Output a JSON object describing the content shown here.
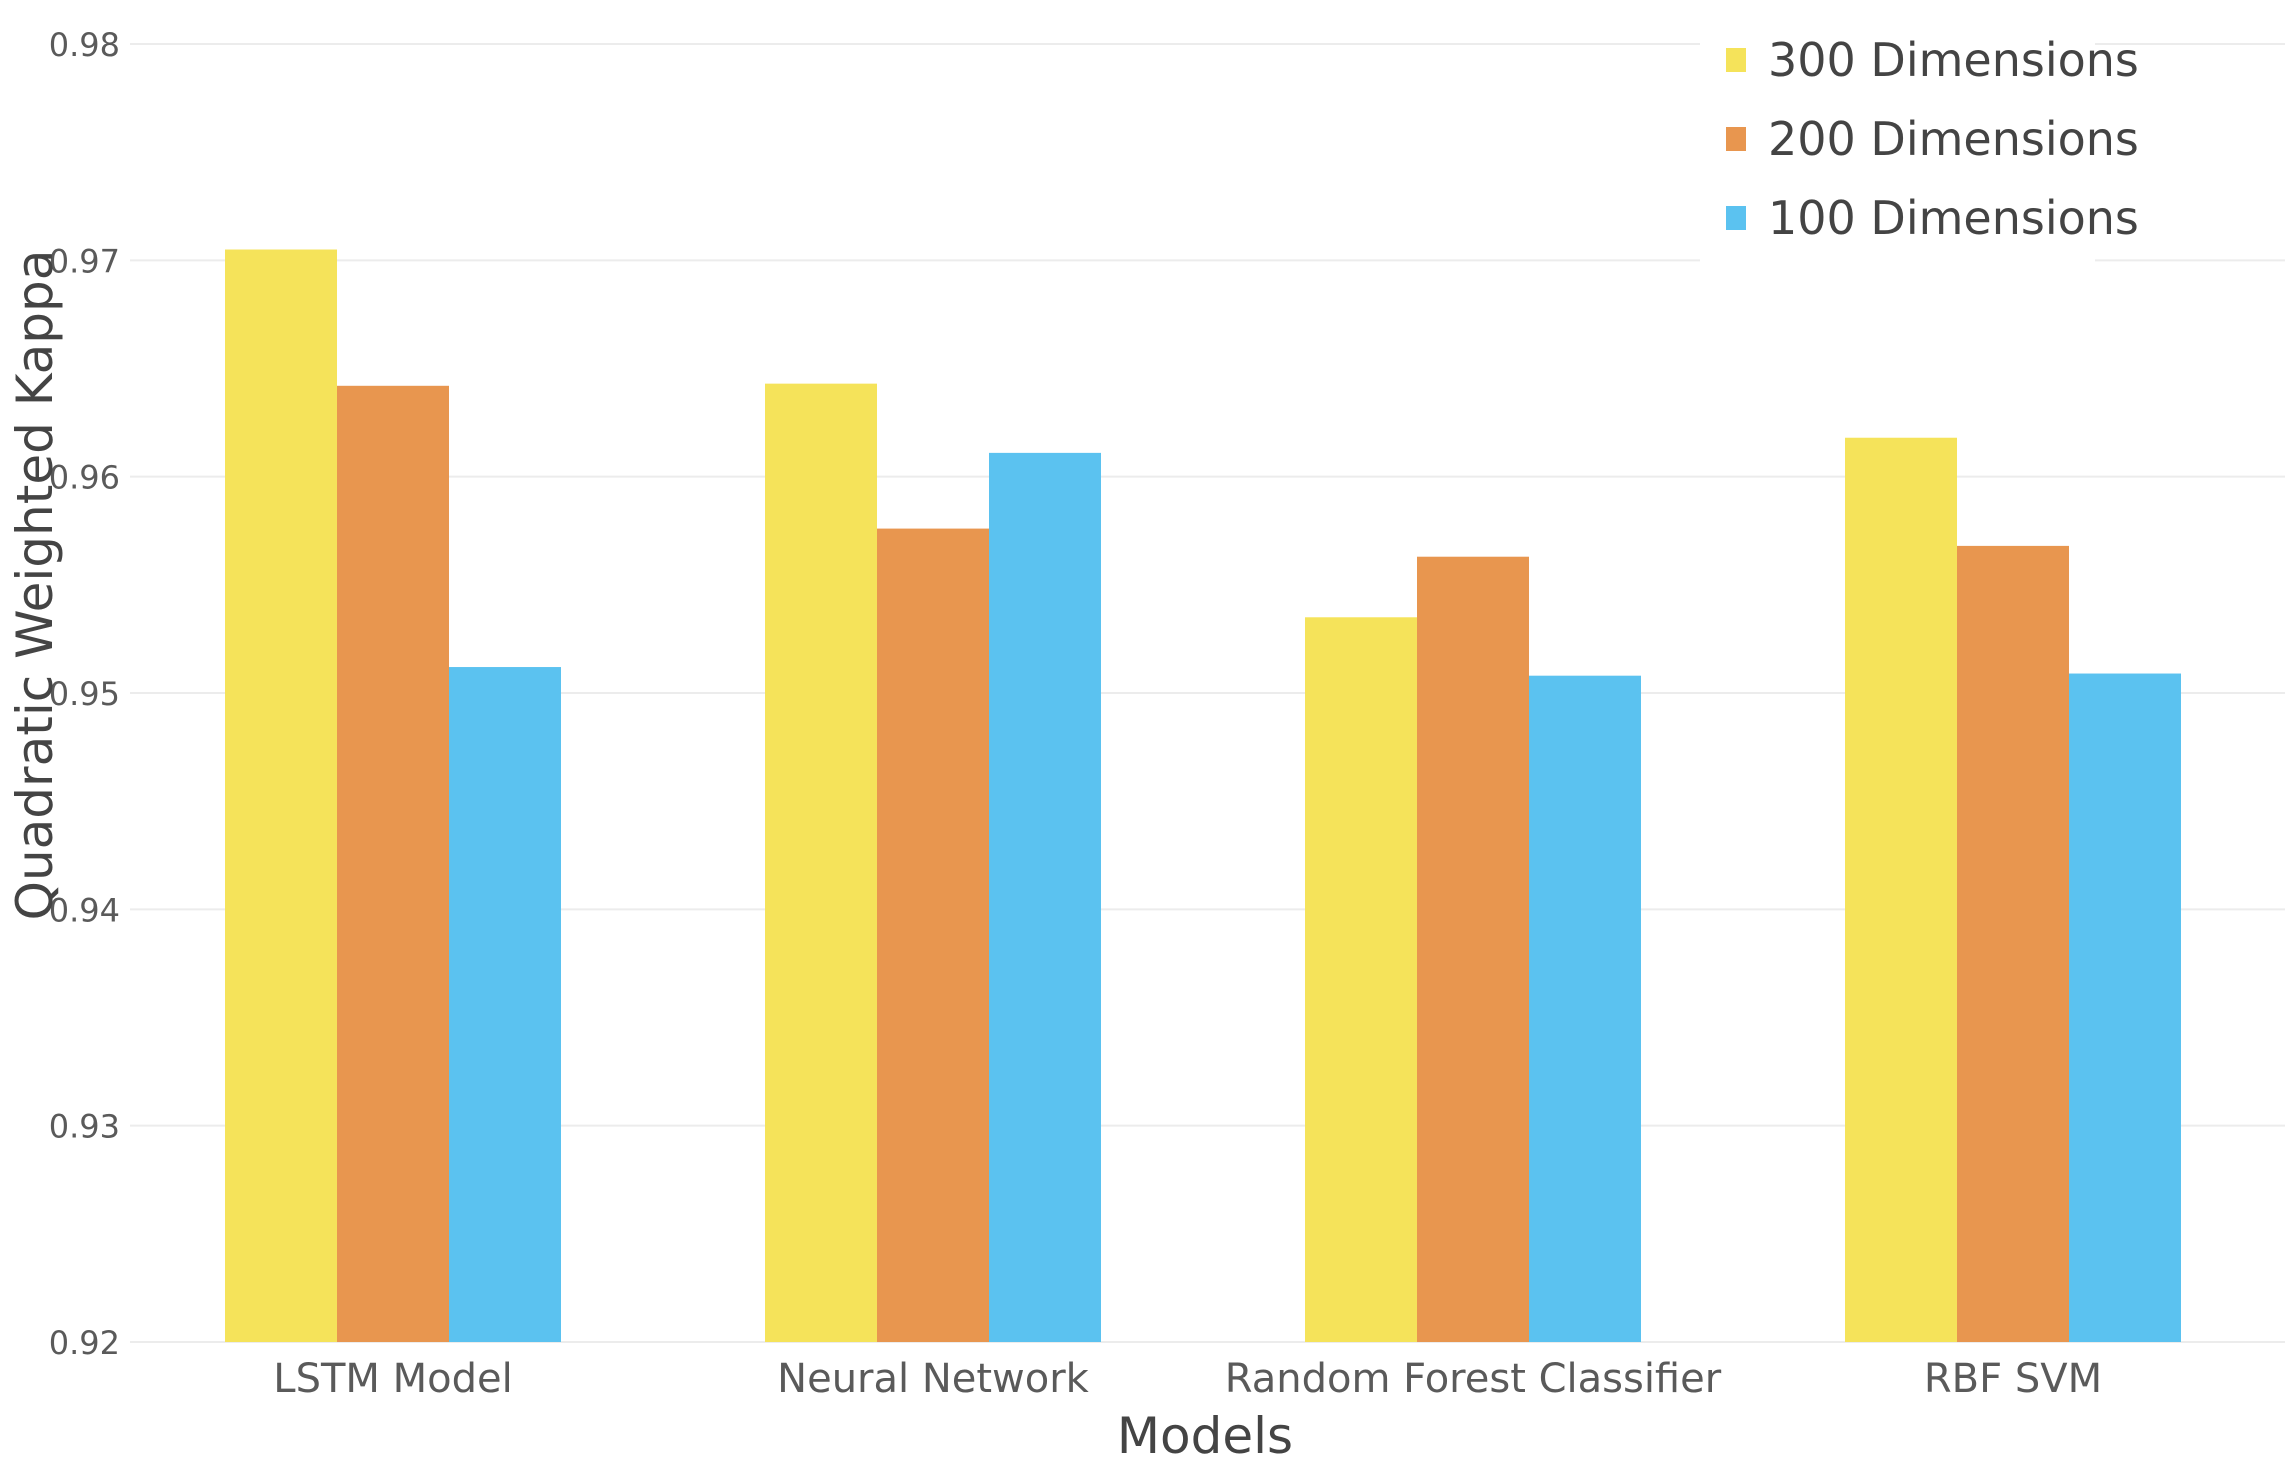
{
  "chart_data": {
    "type": "bar",
    "categories": [
      "LSTM Model",
      "Neural Network",
      "Random Forest Classifier",
      "RBF SVM"
    ],
    "series": [
      {
        "name": "300 Dimensions",
        "color": "#f5e35a",
        "values": [
          0.9705,
          0.9643,
          0.9535,
          0.9618
        ]
      },
      {
        "name": "200 Dimensions",
        "color": "#e8964f",
        "values": [
          0.9642,
          0.9576,
          0.9563,
          0.9568
        ]
      },
      {
        "name": "100 Dimensions",
        "color": "#5bc2f0",
        "values": [
          0.9512,
          0.9611,
          0.9508,
          0.9509
        ]
      }
    ],
    "xlabel": "Models",
    "ylabel": "Quadratic Weighted Kappa",
    "ylim": [
      0.92,
      0.98
    ],
    "yticks": [
      "0.92",
      "0.93",
      "0.94",
      "0.95",
      "0.96",
      "0.97",
      "0.98"
    ],
    "grid": true,
    "legend_position": "top-right"
  }
}
